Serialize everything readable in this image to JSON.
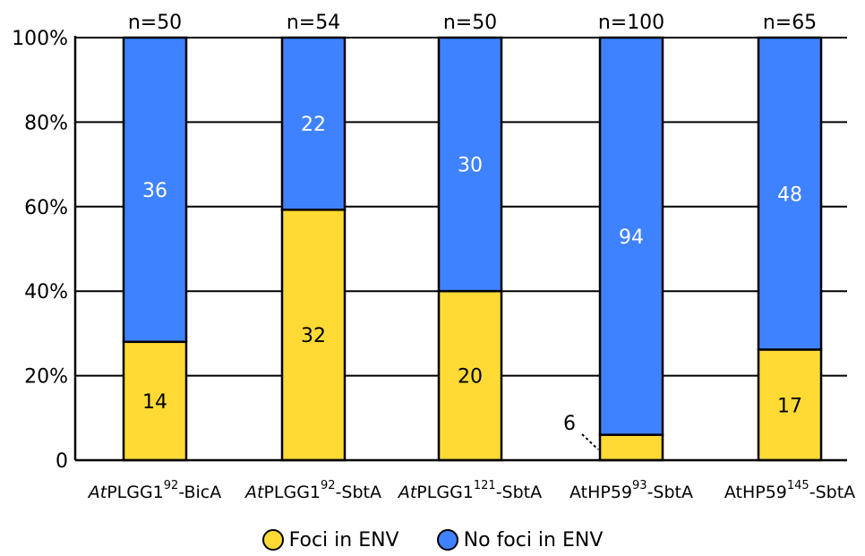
{
  "colors": {
    "foci": "#FFDA35",
    "no_foci": "#3F82FF",
    "stroke": "#000000"
  },
  "chart_data": {
    "type": "bar",
    "stacked": true,
    "normalized_percent": true,
    "categories": [
      {
        "italic": "At",
        "base": "PLGG1",
        "sup": "92",
        "suffix": "-BicA"
      },
      {
        "italic": "At",
        "base": "PLGG1",
        "sup": "92",
        "suffix": "-SbtA"
      },
      {
        "italic": "At",
        "base": "PLGG1",
        "sup": "121",
        "suffix": "-SbtA"
      },
      {
        "italic": "",
        "base": "AtHP59",
        "sup": "93",
        "suffix": "-SbtA"
      },
      {
        "italic": "",
        "base": "AtHP59",
        "sup": "145",
        "suffix": "-SbtA"
      }
    ],
    "n_labels": [
      "n=50",
      "n=54",
      "n=50",
      "n=100",
      "n=65"
    ],
    "series": [
      {
        "name": "Foci in ENV",
        "values": [
          14,
          32,
          20,
          6,
          17
        ]
      },
      {
        "name": "No foci in ENV",
        "values": [
          36,
          22,
          30,
          94,
          48
        ]
      }
    ],
    "yticks": [
      "0",
      "20%",
      "40%",
      "60%",
      "80%",
      "100%"
    ],
    "ylim": [
      0,
      100
    ],
    "grid": true,
    "legend_position": "bottom-center"
  }
}
